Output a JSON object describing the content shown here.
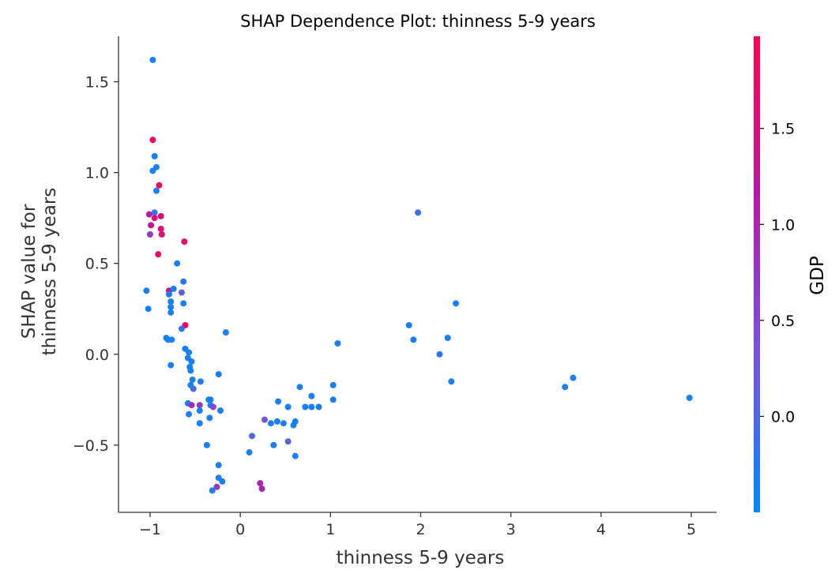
{
  "chart_data": {
    "type": "scatter",
    "title": "SHAP Dependence Plot:  thinness 5-9 years",
    "xlabel": "thinness 5-9 years",
    "ylabel_lines": [
      "SHAP value for",
      "thinness 5-9 years"
    ],
    "xlim": [
      -1.35,
      5.28
    ],
    "ylim": [
      -0.87,
      1.75
    ],
    "xticks": [
      -1,
      0,
      1,
      2,
      3,
      4,
      5
    ],
    "xtick_labels": [
      "−1",
      "0",
      "1",
      "2",
      "3",
      "4",
      "5"
    ],
    "yticks": [
      -0.5,
      0.0,
      0.5,
      1.0,
      1.5
    ],
    "ytick_labels": [
      "−0.5",
      "0.0",
      "0.5",
      "1.0",
      "1.5"
    ],
    "colorbar": {
      "label": "GDP",
      "range": [
        -0.5,
        1.98
      ],
      "ticks": [
        0.0,
        0.5,
        1.0,
        1.5
      ],
      "tick_labels": [
        "0.0",
        "0.5",
        "1.0",
        "1.5"
      ],
      "cmap": [
        "#008afb",
        "#7c52d6",
        "#b31ba5",
        "#ff0052"
      ]
    },
    "points": [
      {
        "x": -0.97,
        "y": 1.62,
        "c": -0.35
      },
      {
        "x": -0.97,
        "y": 1.18,
        "c": 1.8
      },
      {
        "x": -0.95,
        "y": 1.09,
        "c": -0.35
      },
      {
        "x": -0.93,
        "y": 1.03,
        "c": -0.35
      },
      {
        "x": -0.97,
        "y": 1.01,
        "c": -0.35
      },
      {
        "x": -0.9,
        "y": 0.93,
        "c": 1.8
      },
      {
        "x": -0.93,
        "y": 0.9,
        "c": -0.35
      },
      {
        "x": -0.95,
        "y": 0.78,
        "c": -0.2
      },
      {
        "x": -1.01,
        "y": 0.77,
        "c": 1.2
      },
      {
        "x": -0.88,
        "y": 0.76,
        "c": 1.6
      },
      {
        "x": -0.95,
        "y": 0.75,
        "c": 1.6
      },
      {
        "x": -0.99,
        "y": 0.71,
        "c": 1.4
      },
      {
        "x": -0.88,
        "y": 0.69,
        "c": 1.6
      },
      {
        "x": -1.0,
        "y": 0.66,
        "c": 0.7
      },
      {
        "x": -0.87,
        "y": 0.66,
        "c": 1.7
      },
      {
        "x": -0.62,
        "y": 0.62,
        "c": 1.8
      },
      {
        "x": -0.91,
        "y": 0.55,
        "c": 1.7
      },
      {
        "x": -0.7,
        "y": 0.5,
        "c": -0.35
      },
      {
        "x": -0.63,
        "y": 0.4,
        "c": -0.2
      },
      {
        "x": -1.04,
        "y": 0.35,
        "c": -0.35
      },
      {
        "x": -0.79,
        "y": 0.35,
        "c": 1.5
      },
      {
        "x": -0.74,
        "y": 0.36,
        "c": -0.35
      },
      {
        "x": -0.79,
        "y": 0.33,
        "c": -0.35
      },
      {
        "x": -0.65,
        "y": 0.34,
        "c": 0.2
      },
      {
        "x": -0.77,
        "y": 0.29,
        "c": -0.35
      },
      {
        "x": -0.63,
        "y": 0.28,
        "c": -0.35
      },
      {
        "x": -0.77,
        "y": 0.26,
        "c": -0.35
      },
      {
        "x": -1.02,
        "y": 0.25,
        "c": -0.35
      },
      {
        "x": -0.77,
        "y": 0.23,
        "c": -0.35
      },
      {
        "x": -0.61,
        "y": 0.16,
        "c": 1.8
      },
      {
        "x": -0.65,
        "y": 0.14,
        "c": -0.2
      },
      {
        "x": -0.16,
        "y": 0.12,
        "c": -0.35
      },
      {
        "x": -0.82,
        "y": 0.09,
        "c": -0.35
      },
      {
        "x": -0.76,
        "y": 0.08,
        "c": -0.35
      },
      {
        "x": -0.8,
        "y": 0.08,
        "c": -0.35
      },
      {
        "x": -0.61,
        "y": 0.03,
        "c": -0.35
      },
      {
        "x": -0.57,
        "y": 0.01,
        "c": -0.35
      },
      {
        "x": -0.58,
        "y": -0.02,
        "c": -0.35
      },
      {
        "x": -0.54,
        "y": -0.04,
        "c": -0.35
      },
      {
        "x": -0.77,
        "y": -0.06,
        "c": -0.35
      },
      {
        "x": -0.56,
        "y": -0.07,
        "c": -0.35
      },
      {
        "x": -0.55,
        "y": -0.09,
        "c": -0.35
      },
      {
        "x": -0.24,
        "y": -0.11,
        "c": -0.35
      },
      {
        "x": -0.53,
        "y": -0.14,
        "c": -0.35
      },
      {
        "x": -0.44,
        "y": -0.15,
        "c": -0.35
      },
      {
        "x": -0.55,
        "y": -0.17,
        "c": -0.35
      },
      {
        "x": -0.52,
        "y": -0.19,
        "c": 0.0
      },
      {
        "x": -0.35,
        "y": -0.25,
        "c": -0.35
      },
      {
        "x": -0.33,
        "y": -0.25,
        "c": -0.35
      },
      {
        "x": -0.58,
        "y": -0.27,
        "c": -0.35
      },
      {
        "x": -0.33,
        "y": -0.28,
        "c": -0.35
      },
      {
        "x": -0.54,
        "y": -0.28,
        "c": 0.9
      },
      {
        "x": -0.45,
        "y": -0.28,
        "c": 0.7
      },
      {
        "x": -0.3,
        "y": -0.29,
        "c": 0.5
      },
      {
        "x": -0.45,
        "y": -0.31,
        "c": -0.35
      },
      {
        "x": -0.22,
        "y": -0.31,
        "c": -0.35
      },
      {
        "x": -0.57,
        "y": -0.33,
        "c": -0.35
      },
      {
        "x": -0.34,
        "y": -0.35,
        "c": -0.35
      },
      {
        "x": -0.45,
        "y": -0.38,
        "c": -0.35
      },
      {
        "x": -0.37,
        "y": -0.5,
        "c": -0.35
      },
      {
        "x": -0.24,
        "y": -0.61,
        "c": -0.35
      },
      {
        "x": -0.24,
        "y": -0.68,
        "c": -0.35
      },
      {
        "x": -0.2,
        "y": -0.7,
        "c": -0.35
      },
      {
        "x": -0.26,
        "y": -0.73,
        "c": 0.7
      },
      {
        "x": -0.31,
        "y": -0.75,
        "c": -0.35
      },
      {
        "x": 0.1,
        "y": -0.54,
        "c": -0.35
      },
      {
        "x": 0.13,
        "y": -0.45,
        "c": 0.0
      },
      {
        "x": 0.22,
        "y": -0.71,
        "c": 1.0
      },
      {
        "x": 0.24,
        "y": -0.74,
        "c": 1.0
      },
      {
        "x": 0.27,
        "y": -0.36,
        "c": 0.3
      },
      {
        "x": 0.34,
        "y": -0.38,
        "c": -0.35
      },
      {
        "x": 0.37,
        "y": -0.5,
        "c": -0.35
      },
      {
        "x": 0.41,
        "y": -0.37,
        "c": -0.35
      },
      {
        "x": 0.42,
        "y": -0.26,
        "c": -0.35
      },
      {
        "x": 0.48,
        "y": -0.38,
        "c": -0.35
      },
      {
        "x": 0.53,
        "y": -0.29,
        "c": -0.35
      },
      {
        "x": 0.53,
        "y": -0.48,
        "c": 0.1
      },
      {
        "x": 0.59,
        "y": -0.39,
        "c": -0.35
      },
      {
        "x": 0.61,
        "y": -0.37,
        "c": -0.35
      },
      {
        "x": 0.61,
        "y": -0.56,
        "c": -0.35
      },
      {
        "x": 0.66,
        "y": -0.18,
        "c": -0.35
      },
      {
        "x": 0.72,
        "y": -0.29,
        "c": -0.35
      },
      {
        "x": 0.79,
        "y": -0.23,
        "c": -0.35
      },
      {
        "x": 0.79,
        "y": -0.29,
        "c": -0.35
      },
      {
        "x": 0.87,
        "y": -0.29,
        "c": -0.35
      },
      {
        "x": 1.03,
        "y": -0.17,
        "c": -0.35
      },
      {
        "x": 1.03,
        "y": -0.25,
        "c": -0.35
      },
      {
        "x": 1.08,
        "y": 0.06,
        "c": -0.35
      },
      {
        "x": 1.87,
        "y": 0.16,
        "c": -0.35
      },
      {
        "x": 1.92,
        "y": 0.08,
        "c": -0.35
      },
      {
        "x": 1.97,
        "y": 0.78,
        "c": -0.1
      },
      {
        "x": 2.21,
        "y": 0.0,
        "c": -0.2
      },
      {
        "x": 2.3,
        "y": 0.09,
        "c": -0.35
      },
      {
        "x": 2.34,
        "y": -0.15,
        "c": -0.35
      },
      {
        "x": 2.39,
        "y": 0.28,
        "c": -0.35
      },
      {
        "x": 3.6,
        "y": -0.18,
        "c": -0.35
      },
      {
        "x": 3.69,
        "y": -0.13,
        "c": -0.35
      },
      {
        "x": 4.98,
        "y": -0.24,
        "c": -0.35
      }
    ]
  }
}
